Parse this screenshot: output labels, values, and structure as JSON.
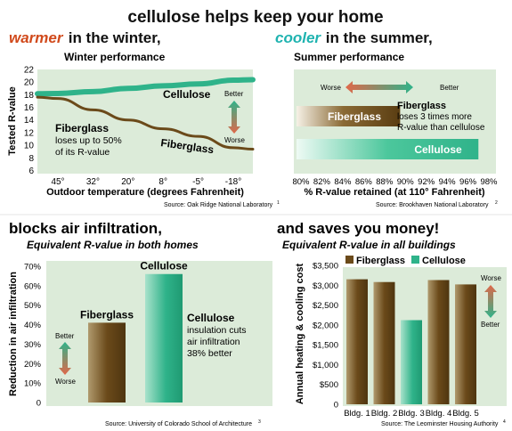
{
  "header": {
    "title": "cellulose helps keep your home",
    "line2_warm_word": "warmer",
    "line2_warm_rest": " in the winter,",
    "line2_cool_word": "cooler",
    "line2_cool_rest": " in the summer,",
    "warm_color": "#d14a1c",
    "cool_color": "#1fb3b0"
  },
  "section_titles": {
    "infiltration": "blocks air infiltration,",
    "infiltration_sub": "Equivalent R-value in both homes",
    "money": "and saves you money!",
    "money_sub": "Equivalent R-value in all buildings"
  },
  "colors": {
    "fiberglass": "#6b4a1a",
    "fiberglass_light": "#b09a6e",
    "cellulose": "#2fb38a",
    "cellulose_light": "#a9e2cb",
    "panel": "#dcebd9"
  },
  "chart_data": [
    {
      "type": "line",
      "title": "Winter performance",
      "xlabel": "Outdoor temperature (degrees Fahrenheit)",
      "ylabel": "Tested R-value",
      "x": [
        "45°",
        "32°",
        "20°",
        "8°",
        "-5°",
        "-18°"
      ],
      "yticks": [
        6,
        8,
        10,
        12,
        14,
        16,
        18,
        20,
        22
      ],
      "ylim": [
        5.5,
        22
      ],
      "series": [
        {
          "name": "Cellulose",
          "values": [
            18.2,
            18.5,
            19.0,
            19.4,
            19.7,
            20.3
          ]
        },
        {
          "name": "Fiberglass",
          "values": [
            17.4,
            15.6,
            14.0,
            12.6,
            11.4,
            9.6
          ]
        }
      ],
      "annotations": {
        "cellulose_label": "Cellulose",
        "fiberglass_label": "Fiberglass",
        "fiberglass_note_title": "Fiberglass",
        "fiberglass_note": [
          "loses up to 50%",
          "of its R-value"
        ],
        "better": "Better",
        "worse": "Worse"
      },
      "source": "Source: Oak Ridge National Laboratory",
      "source_ref": "1"
    },
    {
      "type": "bar",
      "orientation": "horizontal",
      "title": "Summer performance",
      "xlabel": "% R-value retained (at 110° Fahrenheit)",
      "xticks": [
        "80%",
        "82%",
        "84%",
        "86%",
        "88%",
        "90%",
        "92%",
        "94%",
        "96%",
        "98%"
      ],
      "xlim": [
        80,
        98
      ],
      "series": [
        {
          "name": "Fiberglass",
          "value": 89.5
        },
        {
          "name": "Cellulose",
          "value": 97.0
        }
      ],
      "annotations": {
        "worse": "Worse",
        "better": "Better",
        "note_title": "Fiberglass",
        "note": [
          "loses 3 times more",
          "R-value than cellulose"
        ]
      },
      "source": "Source: Brookhaven National Laboratory",
      "source_ref": "2"
    },
    {
      "type": "bar",
      "ylabel": "Reduction in air infiltration",
      "yticks": [
        "0",
        "10%",
        "20%",
        "30%",
        "40%",
        "50%",
        "60%",
        "70%"
      ],
      "ylim": [
        0,
        70
      ],
      "categories": [
        "Fiberglass",
        "Cellulose"
      ],
      "values": [
        41,
        66
      ],
      "annotations": {
        "better": "Better",
        "worse": "Worse",
        "note_title": "Cellulose",
        "note": [
          "insulation cuts",
          "air infiltration",
          "38% better"
        ]
      },
      "source": "Source: University of Colorado School of Architecture",
      "source_ref": "3"
    },
    {
      "type": "bar",
      "ylabel": "Annual heating & cooling cost",
      "yticks": [
        "0",
        "$500",
        "$1,000",
        "$1,500",
        "$2,000",
        "$2,500",
        "$3,000",
        "$3,500"
      ],
      "ylim": [
        0,
        3500
      ],
      "categories": [
        "Bldg. 1",
        "Bldg. 2",
        "Bldg. 3",
        "Bldg. 4",
        "Bldg. 5"
      ],
      "values": [
        3150,
        3080,
        2120,
        3130,
        3020
      ],
      "bar_types": [
        "Fiberglass",
        "Fiberglass",
        "Cellulose",
        "Fiberglass",
        "Fiberglass"
      ],
      "legend": [
        "Fiberglass",
        "Cellulose"
      ],
      "legend_position": "top",
      "annotations": {
        "worse": "Worse",
        "better": "Better"
      },
      "source": "Source: The Leominster Housing Authority",
      "source_ref": "4"
    }
  ]
}
